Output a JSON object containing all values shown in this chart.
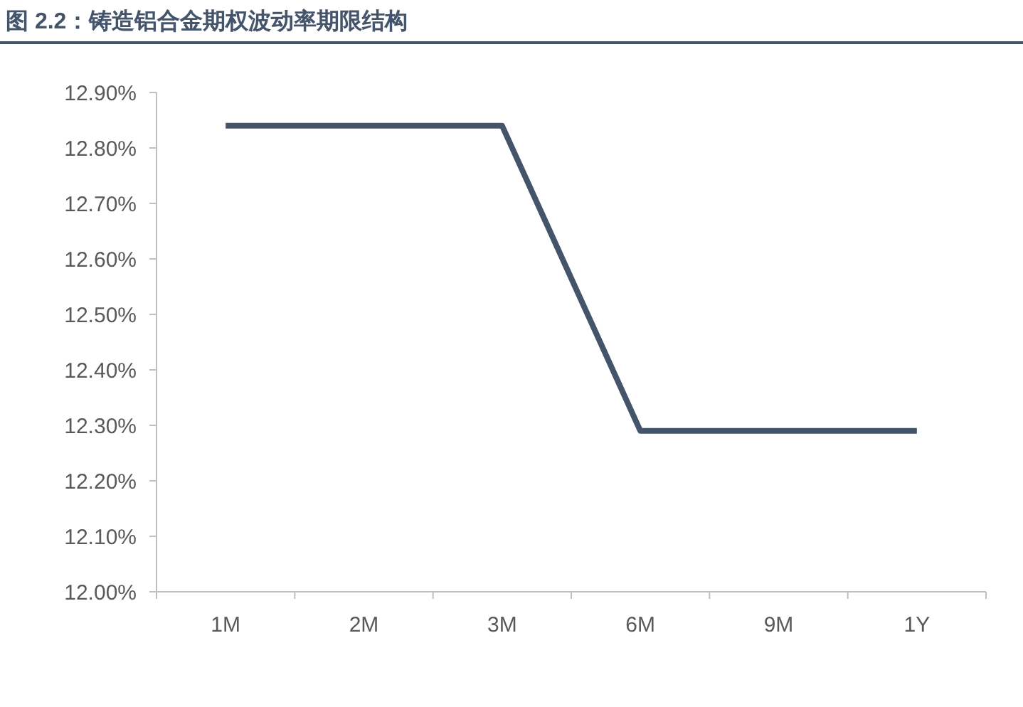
{
  "chart_data": {
    "type": "line",
    "title": "图 2.2：铸造铝合金期权波动率期限结构",
    "categories": [
      "1M",
      "2M",
      "3M",
      "6M",
      "9M",
      "1Y"
    ],
    "series": [
      {
        "color": "#44546a",
        "values": [
          12.84,
          12.84,
          12.84,
          12.29,
          12.29,
          12.29
        ]
      }
    ],
    "ylim": [
      12.0,
      12.9
    ],
    "yticks": [
      {
        "value": 12.0,
        "label": "12.00%"
      },
      {
        "value": 12.1,
        "label": "12.10%"
      },
      {
        "value": 12.2,
        "label": "12.20%"
      },
      {
        "value": 12.3,
        "label": "12.30%"
      },
      {
        "value": 12.4,
        "label": "12.40%"
      },
      {
        "value": 12.5,
        "label": "12.50%"
      },
      {
        "value": 12.6,
        "label": "12.60%"
      },
      {
        "value": 12.7,
        "label": "12.70%"
      },
      {
        "value": 12.8,
        "label": "12.80%"
      },
      {
        "value": 12.9,
        "label": "12.90%"
      }
    ],
    "grid": false,
    "marker": "none",
    "line_style": "solid"
  }
}
